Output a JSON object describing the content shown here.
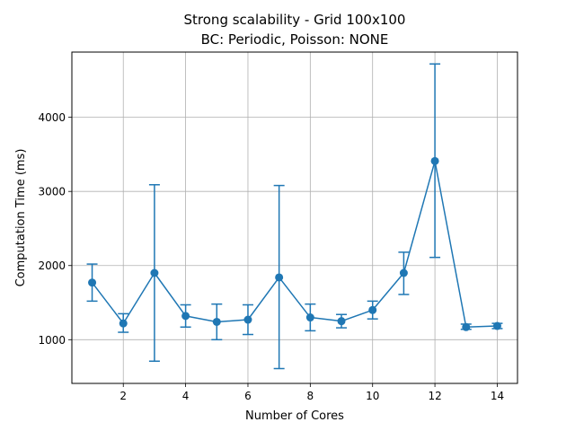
{
  "chart_data": {
    "type": "line",
    "title_line1": "Strong scalability - Grid 100x100",
    "title_line2": "BC: Periodic, Poisson: NONE",
    "xlabel": "Number of Cores",
    "ylabel": "Computation Time (ms)",
    "xlim": [
      0.35,
      14.65
    ],
    "ylim": [
      410,
      4880
    ],
    "xticks": [
      2,
      4,
      6,
      8,
      10,
      12,
      14
    ],
    "yticks": [
      1000,
      2000,
      3000,
      4000
    ],
    "grid": true,
    "series": [
      {
        "color": "#1f77b4",
        "points": [
          {
            "x": 1,
            "y": 1770,
            "err_low": 1520,
            "err_high": 2020
          },
          {
            "x": 2,
            "y": 1220,
            "err_low": 1100,
            "err_high": 1350
          },
          {
            "x": 3,
            "y": 1900,
            "err_low": 710,
            "err_high": 3090
          },
          {
            "x": 4,
            "y": 1320,
            "err_low": 1170,
            "err_high": 1470
          },
          {
            "x": 5,
            "y": 1240,
            "err_low": 1000,
            "err_high": 1480
          },
          {
            "x": 6,
            "y": 1270,
            "err_low": 1070,
            "err_high": 1470
          },
          {
            "x": 7,
            "y": 1840,
            "err_low": 610,
            "err_high": 3080
          },
          {
            "x": 8,
            "y": 1300,
            "err_low": 1120,
            "err_high": 1480
          },
          {
            "x": 9,
            "y": 1250,
            "err_low": 1160,
            "err_high": 1340
          },
          {
            "x": 10,
            "y": 1400,
            "err_low": 1280,
            "err_high": 1520
          },
          {
            "x": 11,
            "y": 1900,
            "err_low": 1610,
            "err_high": 2180
          },
          {
            "x": 12,
            "y": 3410,
            "err_low": 2110,
            "err_high": 4720
          },
          {
            "x": 13,
            "y": 1170,
            "err_low": 1140,
            "err_high": 1210
          },
          {
            "x": 14,
            "y": 1185,
            "err_low": 1150,
            "err_high": 1220
          }
        ]
      }
    ]
  }
}
